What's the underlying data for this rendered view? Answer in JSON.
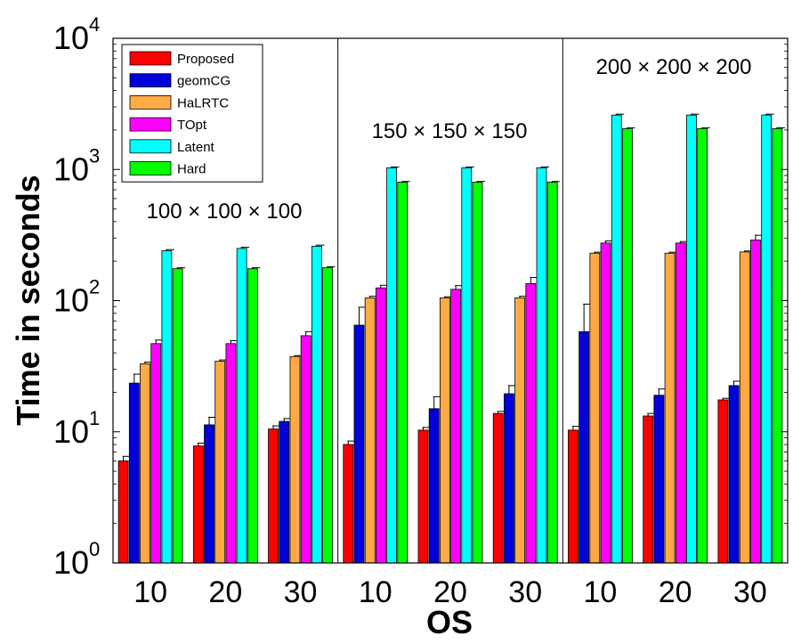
{
  "chart_data": {
    "type": "bar",
    "ylabel": "Time in seconds",
    "xlabel": "OS",
    "yscale": "log",
    "ylim": [
      1,
      10000
    ],
    "ytick_labels": [
      {
        "base": "10",
        "exp": "0"
      },
      {
        "base": "10",
        "exp": "1"
      },
      {
        "base": "10",
        "exp": "2"
      },
      {
        "base": "10",
        "exp": "3"
      },
      {
        "base": "10",
        "exp": "4"
      }
    ],
    "categories": [
      "10",
      "20",
      "30",
      "10",
      "20",
      "30",
      "10",
      "20",
      "30"
    ],
    "groups": [
      {
        "label": "100 × 100 × 100",
        "categories": [
          "10",
          "20",
          "30"
        ]
      },
      {
        "label": "150 × 150 × 150",
        "categories": [
          "10",
          "20",
          "30"
        ]
      },
      {
        "label": "200 × 200 × 200",
        "categories": [
          "10",
          "20",
          "30"
        ]
      }
    ],
    "legend_position": "top-left",
    "series": [
      {
        "name": "Proposed",
        "color": "#ff0000",
        "values": [
          6,
          7.8,
          10.5,
          8,
          10.3,
          13.8,
          10.3,
          13.2,
          17.5
        ],
        "errors": [
          0.5,
          0.4,
          0.6,
          0.5,
          0.5,
          0.5,
          0.7,
          0.6,
          0.5
        ]
      },
      {
        "name": "geomCG",
        "color": "#0000d8",
        "values": [
          23.5,
          11.3,
          12,
          65,
          15,
          19.5,
          58,
          19,
          22.5
        ],
        "errors": [
          4,
          1.6,
          0.6,
          24,
          3.5,
          3,
          36,
          2.2,
          1.8
        ]
      },
      {
        "name": "HaLRTC",
        "color": "#ffaa44",
        "values": [
          33,
          34.5,
          37.5,
          105,
          105,
          105,
          230,
          230,
          235
        ],
        "errors": [
          1,
          0.8,
          0.6,
          3,
          2,
          3,
          4,
          4,
          4
        ]
      },
      {
        "name": "TOpt",
        "color": "#ff00ff",
        "values": [
          47,
          47,
          54,
          125,
          122,
          135,
          275,
          275,
          290
        ],
        "errors": [
          3,
          2.5,
          4,
          6,
          8,
          15,
          10,
          7,
          25
        ]
      },
      {
        "name": "Latent",
        "color": "#00ffff",
        "values": [
          240,
          250,
          260,
          1030,
          1030,
          1030,
          2600,
          2600,
          2600
        ],
        "errors": [
          5,
          5,
          5,
          15,
          15,
          15,
          40,
          40,
          40
        ]
      },
      {
        "name": "Hard",
        "color": "#00ff00",
        "values": [
          175,
          175,
          178,
          800,
          800,
          800,
          2050,
          2050,
          2050
        ],
        "errors": [
          3,
          3,
          3,
          10,
          10,
          10,
          25,
          25,
          25
        ]
      }
    ]
  }
}
